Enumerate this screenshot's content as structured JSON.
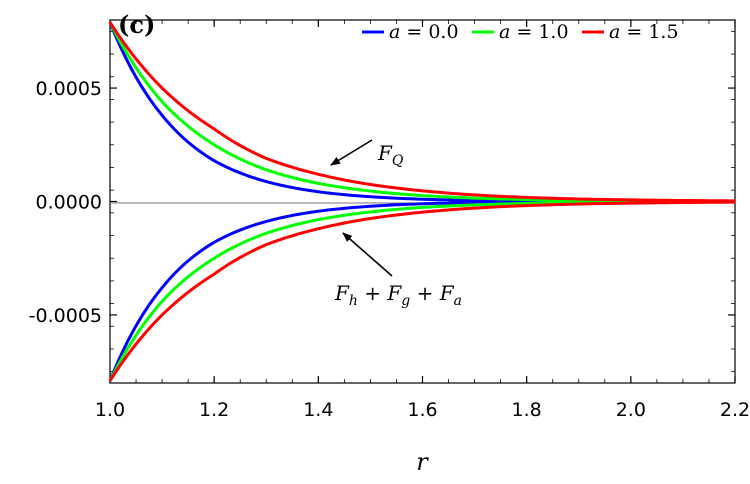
{
  "chart_data": {
    "type": "line",
    "panel_label": "(c)",
    "xlabel": "r",
    "ylabel": "",
    "xlim": [
      1.0,
      2.2
    ],
    "ylim": [
      -0.0008,
      0.0008
    ],
    "x_ticks": [
      "1.0",
      "1.2",
      "1.4",
      "1.6",
      "1.8",
      "2.0",
      "2.2"
    ],
    "y_ticks": [
      "-0.0005",
      "0.0000",
      "0.0005"
    ],
    "y_tick_values": [
      -0.0005,
      0.0,
      0.0005
    ],
    "x_tick_values": [
      1.0,
      1.2,
      1.4,
      1.6,
      1.8,
      2.0,
      2.2
    ],
    "zero_line": true,
    "grid": false,
    "legend_position": "top-right",
    "x": [
      1.0,
      1.1,
      1.2,
      1.3,
      1.4,
      1.5,
      1.6,
      1.7,
      1.8,
      1.9,
      2.0,
      2.1,
      2.2
    ],
    "series": [
      {
        "name": "a = 0.0",
        "param": "0.0",
        "color": "#0000ff",
        "upper": [
          0.00079,
          0.00038,
          0.00018,
          8.8e-05,
          4.3e-05,
          2.1e-05,
          1e-05,
          5e-06,
          2.5e-06,
          1.2e-06,
          6e-07,
          3e-07,
          2e-07
        ],
        "lower": [
          -0.00079,
          -0.00038,
          -0.00018,
          -8.8e-05,
          -4.3e-05,
          -2.1e-05,
          -1e-05,
          -5e-06,
          -2.5e-06,
          -1.2e-06,
          -6e-07,
          -3e-07,
          -2e-07
        ]
      },
      {
        "name": "a = 1.0",
        "param": "1.0",
        "color": "#00ff00",
        "upper": [
          0.00079,
          0.00044,
          0.00025,
          0.00014,
          8e-05,
          4.6e-05,
          2.6e-05,
          1.5e-05,
          8.5e-06,
          4.8e-06,
          2.7e-06,
          1.6e-06,
          9e-07
        ],
        "lower": [
          -0.00079,
          -0.00044,
          -0.00025,
          -0.00014,
          -8e-05,
          -4.6e-05,
          -2.6e-05,
          -1.5e-05,
          -8.5e-06,
          -4.8e-06,
          -2.7e-06,
          -1.6e-06,
          -9e-07
        ]
      },
      {
        "name": "a = 1.5",
        "param": "1.5",
        "color": "#ff0000",
        "upper": [
          0.00079,
          0.0005,
          0.00032,
          0.00019,
          0.00012,
          7.5e-05,
          4.7e-05,
          2.9e-05,
          1.8e-05,
          1.1e-05,
          7.2e-06,
          4.5e-06,
          2.8e-06
        ],
        "lower": [
          -0.00079,
          -0.0005,
          -0.00032,
          -0.00019,
          -0.00012,
          -7.5e-05,
          -4.7e-05,
          -2.9e-05,
          -1.8e-05,
          -1.1e-05,
          -7.2e-06,
          -4.5e-06,
          -2.8e-06
        ]
      }
    ],
    "annotations": [
      {
        "text_main": "F",
        "text_sub": "Q",
        "arrow_target": [
          1.42,
          8e-05
        ]
      },
      {
        "text_main": "F",
        "parts": [
          "h",
          "g",
          "a"
        ],
        "arrow_target": [
          1.47,
          -6e-05
        ]
      }
    ]
  }
}
